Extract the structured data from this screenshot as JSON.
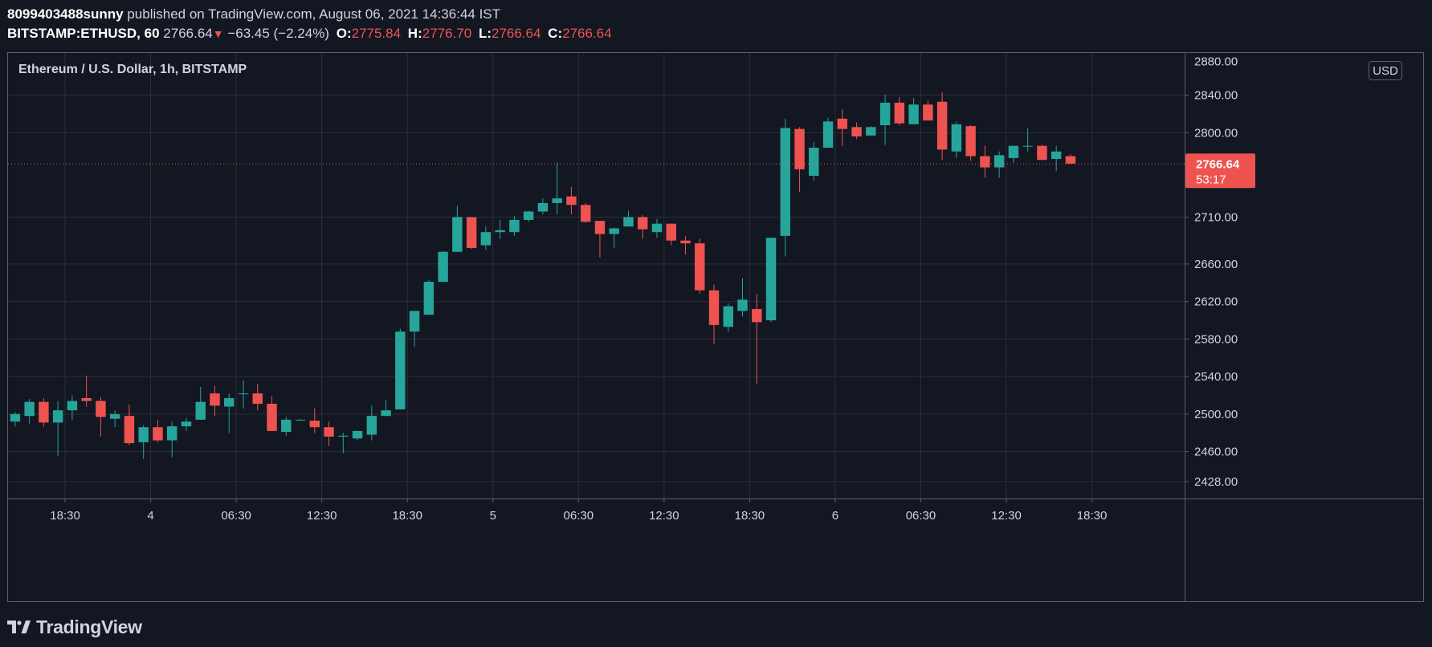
{
  "header": {
    "author": "8099403488sunny",
    "published_text": "published on TradingView.com, August 06, 2021 14:36:44 IST",
    "symbol": "BITSTAMP:ETHUSD, 60",
    "last": "2766.64",
    "change": "−63.45 (−2.24%)",
    "open_label": "O:",
    "open": "2775.84",
    "high_label": "H:",
    "high": "2776.70",
    "low_label": "L:",
    "low": "2766.64",
    "close_label": "C:",
    "close": "2766.64"
  },
  "chart_title": "Ethereum / U.S. Dollar, 1h, BITSTAMP",
  "currency_button": "USD",
  "price_tag": {
    "price": "2766.64",
    "countdown": "53:17"
  },
  "footer": {
    "brand": "TradingView"
  },
  "colors": {
    "up": "#26a69a",
    "down": "#ef5350",
    "background": "#131722",
    "grid": "#2a2e39",
    "text": "#d1d4dc"
  },
  "chart_data": {
    "type": "candlestick",
    "title": "Ethereum / U.S. Dollar, 1h, BITSTAMP",
    "interval": "1h",
    "ylim": [
      2410,
      2885
    ],
    "y_ticks": [
      "2428.00",
      "2460.00",
      "2500.00",
      "2540.00",
      "2580.00",
      "2620.00",
      "2660.00",
      "2710.00",
      "2800.00",
      "2840.00"
    ],
    "x_ticks": [
      {
        "label": "18:30",
        "index": 3.5
      },
      {
        "label": "4",
        "index": 9.5
      },
      {
        "label": "06:30",
        "index": 15.5
      },
      {
        "label": "12:30",
        "index": 21.5
      },
      {
        "label": "18:30",
        "index": 27.5
      },
      {
        "label": "5",
        "index": 33.5
      },
      {
        "label": "06:30",
        "index": 39.5
      },
      {
        "label": "12:30",
        "index": 45.5
      },
      {
        "label": "18:30",
        "index": 51.5
      },
      {
        "label": "6",
        "index": 57.5
      },
      {
        "label": "06:30",
        "index": 63.5
      },
      {
        "label": "12:30",
        "index": 69.5
      },
      {
        "label": "18:30",
        "index": 75.5
      }
    ],
    "total_slots": 82.5,
    "current_price": 2766.64,
    "candles": [
      {
        "o": 2492,
        "h": 2502,
        "l": 2487,
        "c": 2500
      },
      {
        "o": 2498,
        "h": 2516,
        "l": 2490,
        "c": 2513
      },
      {
        "o": 2513,
        "h": 2517,
        "l": 2487,
        "c": 2491
      },
      {
        "o": 2491,
        "h": 2514,
        "l": 2455,
        "c": 2504
      },
      {
        "o": 2504,
        "h": 2520,
        "l": 2494,
        "c": 2514
      },
      {
        "o": 2517,
        "h": 2541,
        "l": 2508,
        "c": 2514
      },
      {
        "o": 2514,
        "h": 2518,
        "l": 2476,
        "c": 2497
      },
      {
        "o": 2495,
        "h": 2504,
        "l": 2486,
        "c": 2500
      },
      {
        "o": 2498,
        "h": 2510,
        "l": 2467,
        "c": 2469
      },
      {
        "o": 2470,
        "h": 2488,
        "l": 2452,
        "c": 2486
      },
      {
        "o": 2486,
        "h": 2494,
        "l": 2470,
        "c": 2472
      },
      {
        "o": 2472,
        "h": 2492,
        "l": 2454,
        "c": 2487
      },
      {
        "o": 2487,
        "h": 2496,
        "l": 2482,
        "c": 2492
      },
      {
        "o": 2494,
        "h": 2529,
        "l": 2494,
        "c": 2513
      },
      {
        "o": 2522,
        "h": 2530,
        "l": 2498,
        "c": 2509
      },
      {
        "o": 2508,
        "h": 2522,
        "l": 2480,
        "c": 2517
      },
      {
        "o": 2522,
        "h": 2536,
        "l": 2506,
        "c": 2522
      },
      {
        "o": 2522,
        "h": 2532,
        "l": 2504,
        "c": 2511
      },
      {
        "o": 2511,
        "h": 2519,
        "l": 2482,
        "c": 2482
      },
      {
        "o": 2481,
        "h": 2497,
        "l": 2477,
        "c": 2494
      },
      {
        "o": 2494,
        "h": 2495,
        "l": 2493,
        "c": 2494
      },
      {
        "o": 2493,
        "h": 2506,
        "l": 2480,
        "c": 2486
      },
      {
        "o": 2486,
        "h": 2492,
        "l": 2466,
        "c": 2476
      },
      {
        "o": 2476,
        "h": 2480,
        "l": 2458,
        "c": 2477
      },
      {
        "o": 2474,
        "h": 2482,
        "l": 2472,
        "c": 2482
      },
      {
        "o": 2478,
        "h": 2509,
        "l": 2472,
        "c": 2498
      },
      {
        "o": 2498,
        "h": 2515,
        "l": 2498,
        "c": 2504
      },
      {
        "o": 2505,
        "h": 2591,
        "l": 2505,
        "c": 2588
      },
      {
        "o": 2588,
        "h": 2610,
        "l": 2572,
        "c": 2610
      },
      {
        "o": 2606,
        "h": 2643,
        "l": 2606,
        "c": 2641
      },
      {
        "o": 2641,
        "h": 2674,
        "l": 2641,
        "c": 2673
      },
      {
        "o": 2673,
        "h": 2722,
        "l": 2673,
        "c": 2710
      },
      {
        "o": 2710,
        "h": 2710,
        "l": 2676,
        "c": 2677
      },
      {
        "o": 2680,
        "h": 2700,
        "l": 2675,
        "c": 2694
      },
      {
        "o": 2694,
        "h": 2707,
        "l": 2687,
        "c": 2696
      },
      {
        "o": 2694,
        "h": 2711,
        "l": 2690,
        "c": 2707
      },
      {
        "o": 2707,
        "h": 2717,
        "l": 2705,
        "c": 2716
      },
      {
        "o": 2716,
        "h": 2730,
        "l": 2713,
        "c": 2725
      },
      {
        "o": 2725,
        "h": 2768,
        "l": 2713,
        "c": 2730
      },
      {
        "o": 2732,
        "h": 2742,
        "l": 2713,
        "c": 2723
      },
      {
        "o": 2723,
        "h": 2725,
        "l": 2704,
        "c": 2705
      },
      {
        "o": 2706,
        "h": 2706,
        "l": 2667,
        "c": 2692
      },
      {
        "o": 2692,
        "h": 2699,
        "l": 2677,
        "c": 2698
      },
      {
        "o": 2700,
        "h": 2717,
        "l": 2700,
        "c": 2710
      },
      {
        "o": 2710,
        "h": 2712,
        "l": 2687,
        "c": 2697
      },
      {
        "o": 2694,
        "h": 2708,
        "l": 2688,
        "c": 2703
      },
      {
        "o": 2703,
        "h": 2703,
        "l": 2680,
        "c": 2685
      },
      {
        "o": 2685,
        "h": 2690,
        "l": 2670,
        "c": 2682
      },
      {
        "o": 2682,
        "h": 2687,
        "l": 2628,
        "c": 2632
      },
      {
        "o": 2632,
        "h": 2638,
        "l": 2575,
        "c": 2595
      },
      {
        "o": 2593,
        "h": 2618,
        "l": 2588,
        "c": 2615
      },
      {
        "o": 2610,
        "h": 2645,
        "l": 2604,
        "c": 2622
      },
      {
        "o": 2612,
        "h": 2628,
        "l": 2532,
        "c": 2598
      },
      {
        "o": 2600,
        "h": 2688,
        "l": 2598,
        "c": 2688
      },
      {
        "o": 2690,
        "h": 2815,
        "l": 2668,
        "c": 2805
      },
      {
        "o": 2804,
        "h": 2806,
        "l": 2737,
        "c": 2761
      },
      {
        "o": 2754,
        "h": 2790,
        "l": 2749,
        "c": 2784
      },
      {
        "o": 2784,
        "h": 2816,
        "l": 2784,
        "c": 2812
      },
      {
        "o": 2815,
        "h": 2825,
        "l": 2786,
        "c": 2804
      },
      {
        "o": 2806,
        "h": 2811,
        "l": 2793,
        "c": 2796
      },
      {
        "o": 2797,
        "h": 2807,
        "l": 2797,
        "c": 2806
      },
      {
        "o": 2808,
        "h": 2841,
        "l": 2787,
        "c": 2832
      },
      {
        "o": 2832,
        "h": 2838,
        "l": 2808,
        "c": 2810
      },
      {
        "o": 2809,
        "h": 2837,
        "l": 2809,
        "c": 2830
      },
      {
        "o": 2830,
        "h": 2834,
        "l": 2813,
        "c": 2813
      },
      {
        "o": 2833,
        "h": 2843,
        "l": 2771,
        "c": 2782
      },
      {
        "o": 2780,
        "h": 2812,
        "l": 2773,
        "c": 2809
      },
      {
        "o": 2807,
        "h": 2808,
        "l": 2770,
        "c": 2775
      },
      {
        "o": 2775,
        "h": 2786,
        "l": 2752,
        "c": 2763
      },
      {
        "o": 2763,
        "h": 2780,
        "l": 2752,
        "c": 2776
      },
      {
        "o": 2773,
        "h": 2786,
        "l": 2768,
        "c": 2786
      },
      {
        "o": 2786,
        "h": 2805,
        "l": 2780,
        "c": 2786
      },
      {
        "o": 2786,
        "h": 2787,
        "l": 2771,
        "c": 2771
      },
      {
        "o": 2772,
        "h": 2786,
        "l": 2759,
        "c": 2780
      },
      {
        "o": 2775,
        "h": 2777,
        "l": 2767,
        "c": 2767
      }
    ]
  }
}
